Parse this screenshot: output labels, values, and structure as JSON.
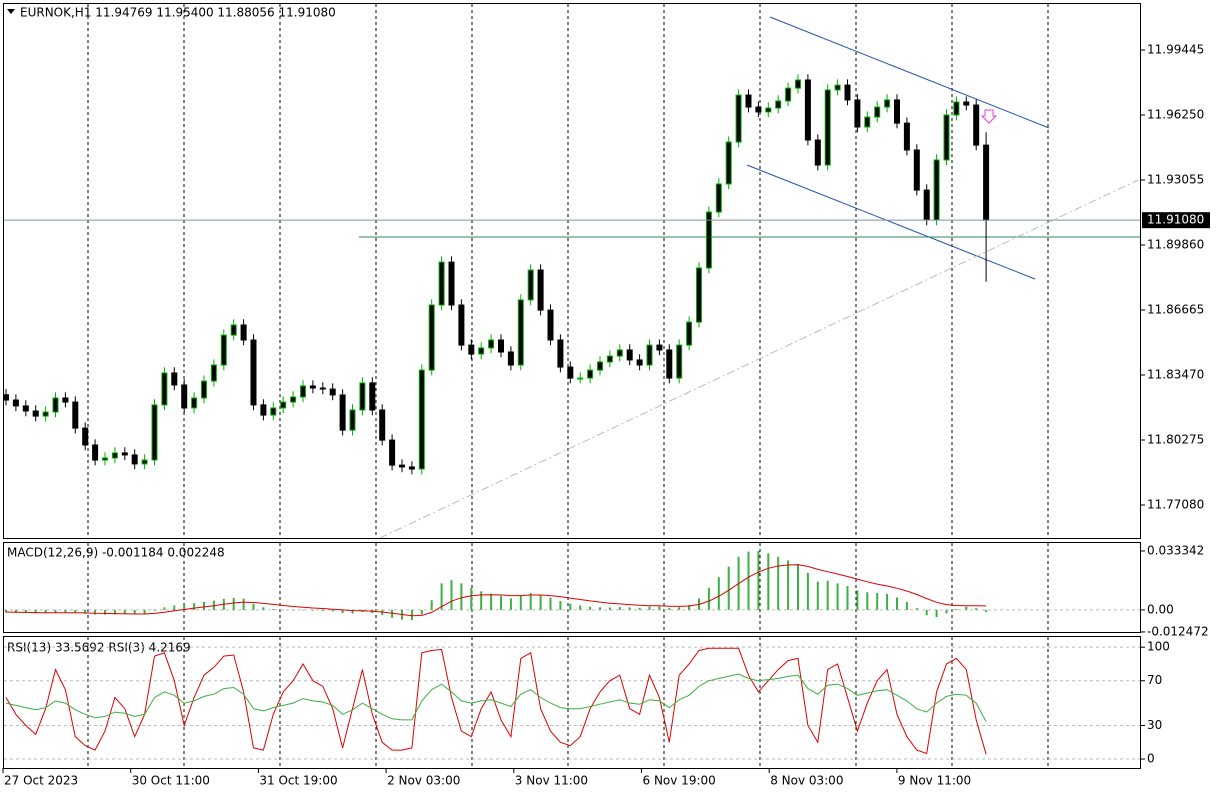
{
  "chart_data": [
    {
      "type": "candlestick",
      "title": "EURNOK,H1  11.94769 11.95400 11.88056 11.91080",
      "up_color": "#00b000",
      "down_color": "#000000",
      "open": [
        11.825,
        11.8224,
        11.8195,
        11.817,
        11.8145,
        11.8165,
        11.8234,
        11.8214,
        11.8086,
        11.8003,
        11.7929,
        11.7939,
        11.7964,
        11.7954,
        11.791,
        11.7929,
        11.82,
        11.8357,
        11.8298,
        11.8185,
        11.8234,
        11.8317,
        11.8396,
        11.8543,
        11.8593,
        11.8519,
        11.82,
        11.815,
        11.8185,
        11.8214,
        11.8239,
        11.8293,
        11.8283,
        11.8278,
        11.8249,
        11.8076,
        11.8175,
        11.8308,
        11.8175,
        11.8027,
        11.7904,
        11.7895,
        11.7885,
        11.8371,
        11.8691,
        11.8902,
        11.8691,
        11.8494,
        11.845,
        11.848,
        11.8519,
        11.846,
        11.8396,
        11.8716,
        11.8863,
        11.8666,
        11.8519,
        11.8386,
        11.8332,
        11.8332,
        11.8371,
        11.8411,
        11.844,
        11.847,
        11.8421,
        11.8396,
        11.8494,
        11.847,
        11.8332,
        11.8494,
        11.8607,
        11.8873,
        11.9148,
        11.9286,
        11.9492,
        11.9723,
        11.9664,
        11.964,
        11.9659,
        11.9694,
        11.9757,
        11.9797,
        11.9502,
        11.9379,
        11.9748,
        11.9772,
        11.9699,
        11.9566,
        11.9615,
        11.9664,
        11.9699,
        11.9585,
        11.9453,
        11.9256,
        11.9109,
        11.9404,
        11.9625,
        11.9689,
        11.9674,
        11.94769
      ],
      "high": [
        11.8278,
        11.8252,
        11.8223,
        11.8198,
        11.8193,
        11.8262,
        11.8262,
        11.8242,
        11.8114,
        11.8031,
        11.7967,
        11.7992,
        11.7992,
        11.7982,
        11.7957,
        11.8228,
        11.8385,
        11.8385,
        11.8326,
        11.8262,
        11.8345,
        11.8424,
        11.8571,
        11.8621,
        11.8621,
        11.8547,
        11.8228,
        11.8213,
        11.8242,
        11.8267,
        11.8321,
        11.8321,
        11.8311,
        11.8306,
        11.8277,
        11.8203,
        11.8336,
        11.8336,
        11.8203,
        11.8055,
        11.7932,
        11.7923,
        11.8399,
        11.8719,
        11.893,
        11.893,
        11.8719,
        11.8522,
        11.8508,
        11.8547,
        11.8547,
        11.8488,
        11.8744,
        11.8891,
        11.8891,
        11.8694,
        11.8547,
        11.8414,
        11.836,
        11.8399,
        11.8439,
        11.8468,
        11.8498,
        11.8498,
        11.8449,
        11.8522,
        11.8522,
        11.8498,
        11.8522,
        11.8635,
        11.8901,
        11.9176,
        11.9314,
        11.952,
        11.9751,
        11.9751,
        11.9692,
        11.9687,
        11.9722,
        11.9785,
        11.9825,
        11.9825,
        11.953,
        11.9776,
        11.98,
        11.98,
        11.9727,
        11.9643,
        11.9692,
        11.9727,
        11.9727,
        11.9613,
        11.9481,
        11.9284,
        11.9432,
        11.9653,
        11.9717,
        11.9717,
        11.9702,
        11.954
      ],
      "low": [
        11.8198,
        11.8169,
        11.8144,
        11.8119,
        11.8119,
        11.8139,
        11.8188,
        11.806,
        11.7977,
        11.7903,
        11.7903,
        11.7913,
        11.7928,
        11.7884,
        11.7884,
        11.7903,
        11.8174,
        11.8272,
        11.8159,
        11.8159,
        11.8208,
        11.8291,
        11.837,
        11.8517,
        11.8493,
        11.8174,
        11.8124,
        11.8124,
        11.8159,
        11.8188,
        11.8213,
        11.8257,
        11.8252,
        11.8223,
        11.805,
        11.805,
        11.8149,
        11.8149,
        11.8001,
        11.7878,
        11.7869,
        11.7859,
        11.7859,
        11.8345,
        11.8665,
        11.8665,
        11.8468,
        11.8424,
        11.8424,
        11.8454,
        11.8434,
        11.837,
        11.837,
        11.869,
        11.864,
        11.8493,
        11.836,
        11.8306,
        11.8306,
        11.8306,
        11.8345,
        11.8385,
        11.8414,
        11.8395,
        11.837,
        11.837,
        11.8444,
        11.8306,
        11.8306,
        11.8468,
        11.8581,
        11.8847,
        11.9122,
        11.926,
        11.9466,
        11.9638,
        11.9614,
        11.9614,
        11.9633,
        11.9668,
        11.9731,
        11.9476,
        11.9353,
        11.9353,
        11.9722,
        11.9673,
        11.954,
        11.954,
        11.9589,
        11.9638,
        11.9559,
        11.9427,
        11.923,
        11.9083,
        11.9083,
        11.9378,
        11.9599,
        11.9648,
        11.9451,
        11.88056
      ],
      "close": [
        11.8224,
        11.8195,
        11.817,
        11.8145,
        11.8165,
        11.8234,
        11.8214,
        11.8086,
        11.8003,
        11.7929,
        11.7939,
        11.7964,
        11.7954,
        11.791,
        11.7929,
        11.82,
        11.8357,
        11.8298,
        11.8185,
        11.8234,
        11.8317,
        11.8396,
        11.8543,
        11.8593,
        11.8519,
        11.82,
        11.815,
        11.8185,
        11.8214,
        11.8239,
        11.8293,
        11.8283,
        11.8278,
        11.8249,
        11.8076,
        11.8175,
        11.8308,
        11.8175,
        11.8027,
        11.7904,
        11.7895,
        11.7885,
        11.8371,
        11.8691,
        11.8902,
        11.8691,
        11.8494,
        11.845,
        11.848,
        11.8519,
        11.846,
        11.8396,
        11.8716,
        11.8863,
        11.8666,
        11.8519,
        11.8386,
        11.8332,
        11.8332,
        11.8371,
        11.8411,
        11.844,
        11.847,
        11.8421,
        11.8396,
        11.8494,
        11.847,
        11.8332,
        11.8494,
        11.8607,
        11.8873,
        11.9148,
        11.9286,
        11.9492,
        11.9723,
        11.9664,
        11.964,
        11.9659,
        11.9694,
        11.9757,
        11.9797,
        11.9502,
        11.9379,
        11.9748,
        11.9772,
        11.9699,
        11.9566,
        11.9615,
        11.9664,
        11.9699,
        11.9585,
        11.9453,
        11.9256,
        11.9109,
        11.9404,
        11.9625,
        11.9689,
        11.9674,
        11.9477,
        11.9108
      ],
      "ylim": [
        11.75458,
        12.01755
      ],
      "yticks": [
        11.99445,
        {
          "value": 11.9625,
          "label": "11.96250"
        },
        11.93055,
        {
          "value": 11.8986,
          "label": "11.89860"
        },
        11.86665,
        {
          "value": 11.8347,
          "label": "11.83470"
        },
        11.80275,
        {
          "value": 11.7708,
          "label": "11.77080"
        }
      ],
      "last_price": {
        "value": 11.9108,
        "label": "11.91080"
      },
      "x_labels": [
        "27 Oct 2023",
        "30 Oct 11:00",
        "31 Oct 19:00",
        "2 Nov 03:00",
        "3 Nov 11:00",
        "6 Nov 19:00",
        "8 Nov 03:00",
        "9 Nov 11:00"
      ]
    },
    {
      "type": "macd",
      "title": "MACD(12,26,9) -0.001184 0.002248",
      "histogram": {
        "color": "#3cb043",
        "values": [
          -0.0015,
          -0.0016,
          -0.0018,
          -0.002,
          -0.0019,
          -0.0015,
          -0.0014,
          -0.0018,
          -0.0022,
          -0.0026,
          -0.0027,
          -0.0026,
          -0.0025,
          -0.0026,
          -0.0024,
          -0.0005,
          0.0015,
          0.0025,
          0.003,
          0.0038,
          0.0045,
          0.0052,
          0.0062,
          0.0068,
          0.0064,
          0.0035,
          0.0015,
          0.0005,
          0,
          -0.0003,
          -0.0002,
          -0.0004,
          -0.0006,
          -0.0008,
          -0.0018,
          -0.002,
          -0.0012,
          -0.0018,
          -0.003,
          -0.0045,
          -0.0055,
          -0.0058,
          -0.0025,
          0.0055,
          0.015,
          0.0168,
          0.015,
          0.0125,
          0.0105,
          0.0092,
          0.008,
          0.0065,
          0.008,
          0.0095,
          0.0085,
          0.007,
          0.005,
          0.0035,
          0.0025,
          0.0018,
          0.0015,
          0.0014,
          0.0016,
          0.0014,
          0.0012,
          0.0018,
          0.002,
          0.001,
          0.0015,
          0.0028,
          0.0065,
          0.0125,
          0.0185,
          0.0245,
          0.03,
          0.033,
          0.0333,
          0.032,
          0.03,
          0.028,
          0.026,
          0.021,
          0.016,
          0.0165,
          0.015,
          0.0135,
          0.011,
          0.01,
          0.0095,
          0.009,
          0.007,
          0.0045,
          0.001,
          -0.003,
          -0.004,
          -0.002,
          0.0005,
          0.0018,
          0.001,
          -0.001184
        ]
      },
      "signal": {
        "color": "#e00000",
        "values": [
          -0.0012,
          -0.0013,
          -0.0014,
          -0.0015,
          -0.0016,
          -0.0016,
          -0.0016,
          -0.0016,
          -0.0017,
          -0.0019,
          -0.002,
          -0.0021,
          -0.0022,
          -0.0023,
          -0.0023,
          -0.002,
          -0.0013,
          -0.0005,
          0.0002,
          0.001,
          0.0017,
          0.0024,
          0.0032,
          0.0039,
          0.0044,
          0.0042,
          0.0037,
          0.0031,
          0.0025,
          0.0019,
          0.0015,
          0.0011,
          0.0008,
          0.0004,
          0,
          -0.0004,
          -0.0005,
          -0.0008,
          -0.0012,
          -0.0019,
          -0.0026,
          -0.0033,
          -0.0031,
          -0.0014,
          0.0019,
          0.0049,
          0.0069,
          0.008,
          0.0085,
          0.0086,
          0.0085,
          0.0081,
          0.0081,
          0.0084,
          0.0084,
          0.0081,
          0.0075,
          0.0067,
          0.0059,
          0.0051,
          0.0044,
          0.0038,
          0.0034,
          0.003,
          0.0026,
          0.0024,
          0.0023,
          0.0021,
          0.002,
          0.0022,
          0.0031,
          0.005,
          0.0077,
          0.0111,
          0.0149,
          0.0185,
          0.0214,
          0.0235,
          0.0248,
          0.0254,
          0.0255,
          0.0246,
          0.0229,
          0.0216,
          0.0203,
          0.0189,
          0.0174,
          0.0159,
          0.0146,
          0.0135,
          0.0122,
          0.0107,
          0.0087,
          0.0064,
          0.0043,
          0.003,
          0.0025,
          0.0024,
          0.0023,
          0.002248
        ]
      },
      "ylim": [
        -0.0125,
        0.0384
      ],
      "yticks": [
        0.033342,
        {
          "value": 0,
          "label": "0.00"
        },
        -0.012472
      ]
    },
    {
      "type": "line",
      "title": "RSI(13) 33.5692  RSI(3) 4.2169",
      "series": [
        {
          "color": "#e00000",
          "values": [
            55,
            40,
            30,
            22,
            45,
            80,
            62,
            20,
            12,
            8,
            25,
            55,
            45,
            20,
            40,
            92,
            95,
            70,
            30,
            55,
            75,
            82,
            92,
            93,
            60,
            10,
            8,
            40,
            60,
            70,
            85,
            70,
            65,
            45,
            10,
            45,
            80,
            40,
            15,
            8,
            8,
            10,
            95,
            97,
            98,
            55,
            25,
            20,
            45,
            60,
            35,
            20,
            90,
            95,
            45,
            25,
            15,
            12,
            20,
            45,
            60,
            70,
            75,
            45,
            40,
            75,
            55,
            15,
            75,
            85,
            97,
            99,
            99,
            99,
            99,
            75,
            60,
            70,
            80,
            88,
            90,
            30,
            15,
            80,
            85,
            55,
            25,
            50,
            70,
            80,
            40,
            20,
            8,
            5,
            60,
            85,
            90,
            80,
            35,
            4.2169
          ]
        },
        {
          "color": "#3cb043",
          "values": [
            50,
            48,
            46,
            44,
            46,
            52,
            50,
            44,
            40,
            37,
            38,
            42,
            41,
            38,
            40,
            55,
            60,
            57,
            50,
            52,
            56,
            58,
            63,
            64,
            58,
            45,
            43,
            46,
            48,
            50,
            54,
            52,
            51,
            48,
            40,
            44,
            50,
            45,
            40,
            36,
            35,
            35,
            52,
            62,
            67,
            60,
            52,
            50,
            52,
            53,
            50,
            47,
            58,
            62,
            55,
            50,
            46,
            45,
            45,
            47,
            49,
            51,
            53,
            50,
            49,
            53,
            52,
            46,
            53,
            57,
            65,
            70,
            72,
            74,
            76,
            72,
            70,
            71,
            72,
            74,
            75,
            63,
            58,
            66,
            67,
            63,
            57,
            59,
            61,
            62,
            57,
            52,
            45,
            42,
            50,
            56,
            58,
            57,
            50,
            33.5692
          ]
        }
      ],
      "ylim": [
        -8,
        110
      ],
      "yticks": [
        100,
        70,
        30,
        0
      ]
    }
  ]
}
